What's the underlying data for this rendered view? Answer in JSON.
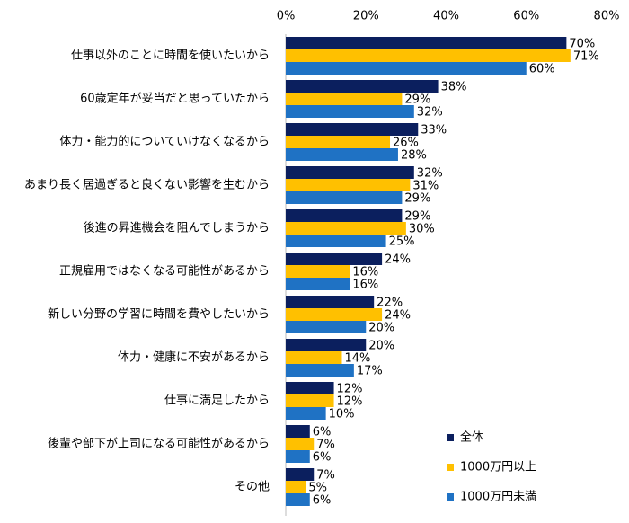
{
  "chart_data": {
    "type": "bar",
    "orientation": "horizontal",
    "categories": [
      "仕事以外のことに時間を使いたいから",
      "60歳定年が妥当だと思っていたから",
      "体力・能力的についていけなくなるから",
      "あまり長く居過ぎると良くない影響を生むから",
      "後進の昇進機会を阻んでしまうから",
      "正規雇用ではなくなる可能性があるから",
      "新しい分野の学習に時間を費やしたいから",
      "体力・健康に不安があるから",
      "仕事に満足したから",
      "後輩や部下が上司になる可能性があるから",
      "その他"
    ],
    "series": [
      {
        "name": "全体",
        "color": "#0b1f5e",
        "values": [
          70,
          38,
          33,
          32,
          29,
          24,
          22,
          20,
          12,
          6,
          7
        ],
        "value_labels": [
          "70%",
          "38%",
          "33%",
          "32%",
          "29%",
          "24%",
          "22%",
          "20%",
          "12%",
          "6%",
          "7%"
        ]
      },
      {
        "name": "1000万円以上",
        "color": "#ffc000",
        "values": [
          71,
          29,
          26,
          31,
          30,
          16,
          24,
          14,
          12,
          7,
          5
        ],
        "value_labels": [
          "71%",
          "29%",
          "26%",
          "31%",
          "30%",
          "16%",
          "24%",
          "14%",
          "12%",
          "7%",
          "5%"
        ]
      },
      {
        "name": "1000万円未満",
        "color": "#1f72c4",
        "values": [
          60,
          32,
          28,
          29,
          25,
          16,
          20,
          17,
          10,
          6,
          6
        ],
        "value_labels": [
          "60%",
          "32%",
          "28%",
          "29%",
          "25%",
          "16%",
          "20%",
          "17%",
          "10%",
          "6%",
          "6%"
        ]
      }
    ],
    "xlim": [
      0,
      80
    ],
    "xticks": [
      {
        "value": 0,
        "label": "0%"
      },
      {
        "value": 20,
        "label": "20%"
      },
      {
        "value": 40,
        "label": "40%"
      },
      {
        "value": 60,
        "label": "60%"
      },
      {
        "value": 80,
        "label": "80%"
      }
    ],
    "grid": false,
    "legend": "lower right"
  }
}
